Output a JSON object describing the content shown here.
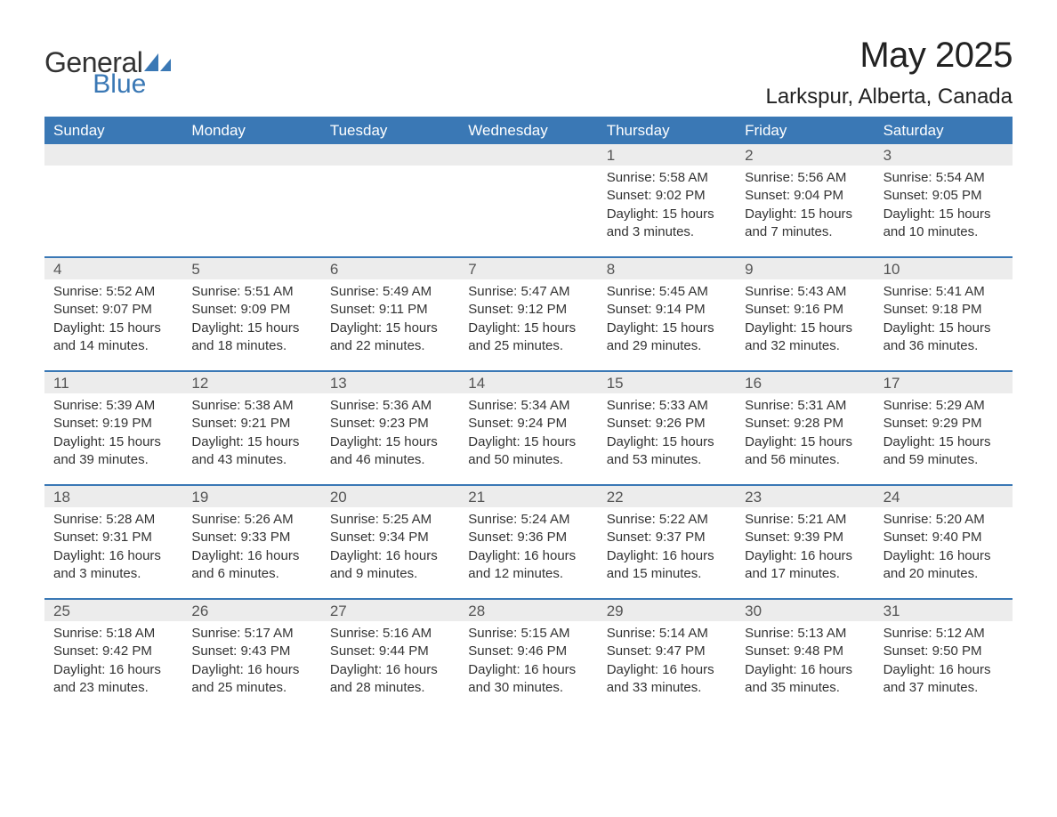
{
  "logo": {
    "line1": "General",
    "line2": "Blue",
    "icon_color": "#3a78b5"
  },
  "title": "May 2025",
  "location": "Larkspur, Alberta, Canada",
  "weekday_header_bg": "#3a78b5",
  "weekday_header_fg": "#ffffff",
  "daynum_band_bg": "#ececec",
  "row_divider_color": "#3a78b5",
  "text_color": "#333333",
  "weekdays": [
    "Sunday",
    "Monday",
    "Tuesday",
    "Wednesday",
    "Thursday",
    "Friday",
    "Saturday"
  ],
  "weeks": [
    [
      null,
      null,
      null,
      null,
      {
        "n": "1",
        "sunrise": "5:58 AM",
        "sunset": "9:02 PM",
        "daylight": "15 hours and 3 minutes."
      },
      {
        "n": "2",
        "sunrise": "5:56 AM",
        "sunset": "9:04 PM",
        "daylight": "15 hours and 7 minutes."
      },
      {
        "n": "3",
        "sunrise": "5:54 AM",
        "sunset": "9:05 PM",
        "daylight": "15 hours and 10 minutes."
      }
    ],
    [
      {
        "n": "4",
        "sunrise": "5:52 AM",
        "sunset": "9:07 PM",
        "daylight": "15 hours and 14 minutes."
      },
      {
        "n": "5",
        "sunrise": "5:51 AM",
        "sunset": "9:09 PM",
        "daylight": "15 hours and 18 minutes."
      },
      {
        "n": "6",
        "sunrise": "5:49 AM",
        "sunset": "9:11 PM",
        "daylight": "15 hours and 22 minutes."
      },
      {
        "n": "7",
        "sunrise": "5:47 AM",
        "sunset": "9:12 PM",
        "daylight": "15 hours and 25 minutes."
      },
      {
        "n": "8",
        "sunrise": "5:45 AM",
        "sunset": "9:14 PM",
        "daylight": "15 hours and 29 minutes."
      },
      {
        "n": "9",
        "sunrise": "5:43 AM",
        "sunset": "9:16 PM",
        "daylight": "15 hours and 32 minutes."
      },
      {
        "n": "10",
        "sunrise": "5:41 AM",
        "sunset": "9:18 PM",
        "daylight": "15 hours and 36 minutes."
      }
    ],
    [
      {
        "n": "11",
        "sunrise": "5:39 AM",
        "sunset": "9:19 PM",
        "daylight": "15 hours and 39 minutes."
      },
      {
        "n": "12",
        "sunrise": "5:38 AM",
        "sunset": "9:21 PM",
        "daylight": "15 hours and 43 minutes."
      },
      {
        "n": "13",
        "sunrise": "5:36 AM",
        "sunset": "9:23 PM",
        "daylight": "15 hours and 46 minutes."
      },
      {
        "n": "14",
        "sunrise": "5:34 AM",
        "sunset": "9:24 PM",
        "daylight": "15 hours and 50 minutes."
      },
      {
        "n": "15",
        "sunrise": "5:33 AM",
        "sunset": "9:26 PM",
        "daylight": "15 hours and 53 minutes."
      },
      {
        "n": "16",
        "sunrise": "5:31 AM",
        "sunset": "9:28 PM",
        "daylight": "15 hours and 56 minutes."
      },
      {
        "n": "17",
        "sunrise": "5:29 AM",
        "sunset": "9:29 PM",
        "daylight": "15 hours and 59 minutes."
      }
    ],
    [
      {
        "n": "18",
        "sunrise": "5:28 AM",
        "sunset": "9:31 PM",
        "daylight": "16 hours and 3 minutes."
      },
      {
        "n": "19",
        "sunrise": "5:26 AM",
        "sunset": "9:33 PM",
        "daylight": "16 hours and 6 minutes."
      },
      {
        "n": "20",
        "sunrise": "5:25 AM",
        "sunset": "9:34 PM",
        "daylight": "16 hours and 9 minutes."
      },
      {
        "n": "21",
        "sunrise": "5:24 AM",
        "sunset": "9:36 PM",
        "daylight": "16 hours and 12 minutes."
      },
      {
        "n": "22",
        "sunrise": "5:22 AM",
        "sunset": "9:37 PM",
        "daylight": "16 hours and 15 minutes."
      },
      {
        "n": "23",
        "sunrise": "5:21 AM",
        "sunset": "9:39 PM",
        "daylight": "16 hours and 17 minutes."
      },
      {
        "n": "24",
        "sunrise": "5:20 AM",
        "sunset": "9:40 PM",
        "daylight": "16 hours and 20 minutes."
      }
    ],
    [
      {
        "n": "25",
        "sunrise": "5:18 AM",
        "sunset": "9:42 PM",
        "daylight": "16 hours and 23 minutes."
      },
      {
        "n": "26",
        "sunrise": "5:17 AM",
        "sunset": "9:43 PM",
        "daylight": "16 hours and 25 minutes."
      },
      {
        "n": "27",
        "sunrise": "5:16 AM",
        "sunset": "9:44 PM",
        "daylight": "16 hours and 28 minutes."
      },
      {
        "n": "28",
        "sunrise": "5:15 AM",
        "sunset": "9:46 PM",
        "daylight": "16 hours and 30 minutes."
      },
      {
        "n": "29",
        "sunrise": "5:14 AM",
        "sunset": "9:47 PM",
        "daylight": "16 hours and 33 minutes."
      },
      {
        "n": "30",
        "sunrise": "5:13 AM",
        "sunset": "9:48 PM",
        "daylight": "16 hours and 35 minutes."
      },
      {
        "n": "31",
        "sunrise": "5:12 AM",
        "sunset": "9:50 PM",
        "daylight": "16 hours and 37 minutes."
      }
    ]
  ],
  "labels": {
    "sunrise": "Sunrise: ",
    "sunset": "Sunset: ",
    "daylight": "Daylight: "
  }
}
